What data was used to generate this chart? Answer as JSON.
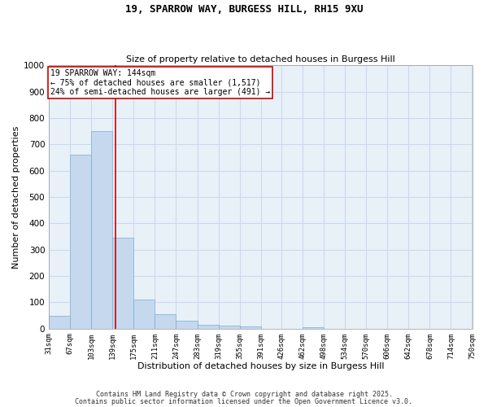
{
  "title": "19, SPARROW WAY, BURGESS HILL, RH15 9XU",
  "subtitle": "Size of property relative to detached houses in Burgess Hill",
  "xlabel": "Distribution of detached houses by size in Burgess Hill",
  "ylabel": "Number of detached properties",
  "bar_color": "#c5d8ee",
  "bar_edge_color": "#7aafd4",
  "grid_color": "#c8d8ee",
  "background_color": "#e8f0f8",
  "bins": [
    31,
    67,
    103,
    139,
    175,
    211,
    247,
    283,
    319,
    355,
    391,
    426,
    462,
    498,
    534,
    570,
    606,
    642,
    678,
    714,
    750
  ],
  "bin_labels": [
    "31sqm",
    "67sqm",
    "103sqm",
    "139sqm",
    "175sqm",
    "211sqm",
    "247sqm",
    "283sqm",
    "319sqm",
    "355sqm",
    "391sqm",
    "426sqm",
    "462sqm",
    "498sqm",
    "534sqm",
    "570sqm",
    "606sqm",
    "642sqm",
    "678sqm",
    "714sqm",
    "750sqm"
  ],
  "values": [
    50,
    660,
    750,
    345,
    110,
    55,
    30,
    15,
    12,
    8,
    0,
    0,
    5,
    0,
    0,
    0,
    0,
    0,
    0,
    0
  ],
  "property_size": 144,
  "vline_color": "#cc0000",
  "annotation_line1": "19 SPARROW WAY: 144sqm",
  "annotation_line2": "← 75% of detached houses are smaller (1,517)",
  "annotation_line3": "24% of semi-detached houses are larger (491) →",
  "annotation_box_color": "#ffffff",
  "annotation_box_edge_color": "#cc0000",
  "ylim": [
    0,
    1000
  ],
  "yticks": [
    0,
    100,
    200,
    300,
    400,
    500,
    600,
    700,
    800,
    900,
    1000
  ],
  "footnote1": "Contains HM Land Registry data © Crown copyright and database right 2025.",
  "footnote2": "Contains public sector information licensed under the Open Government Licence v3.0."
}
